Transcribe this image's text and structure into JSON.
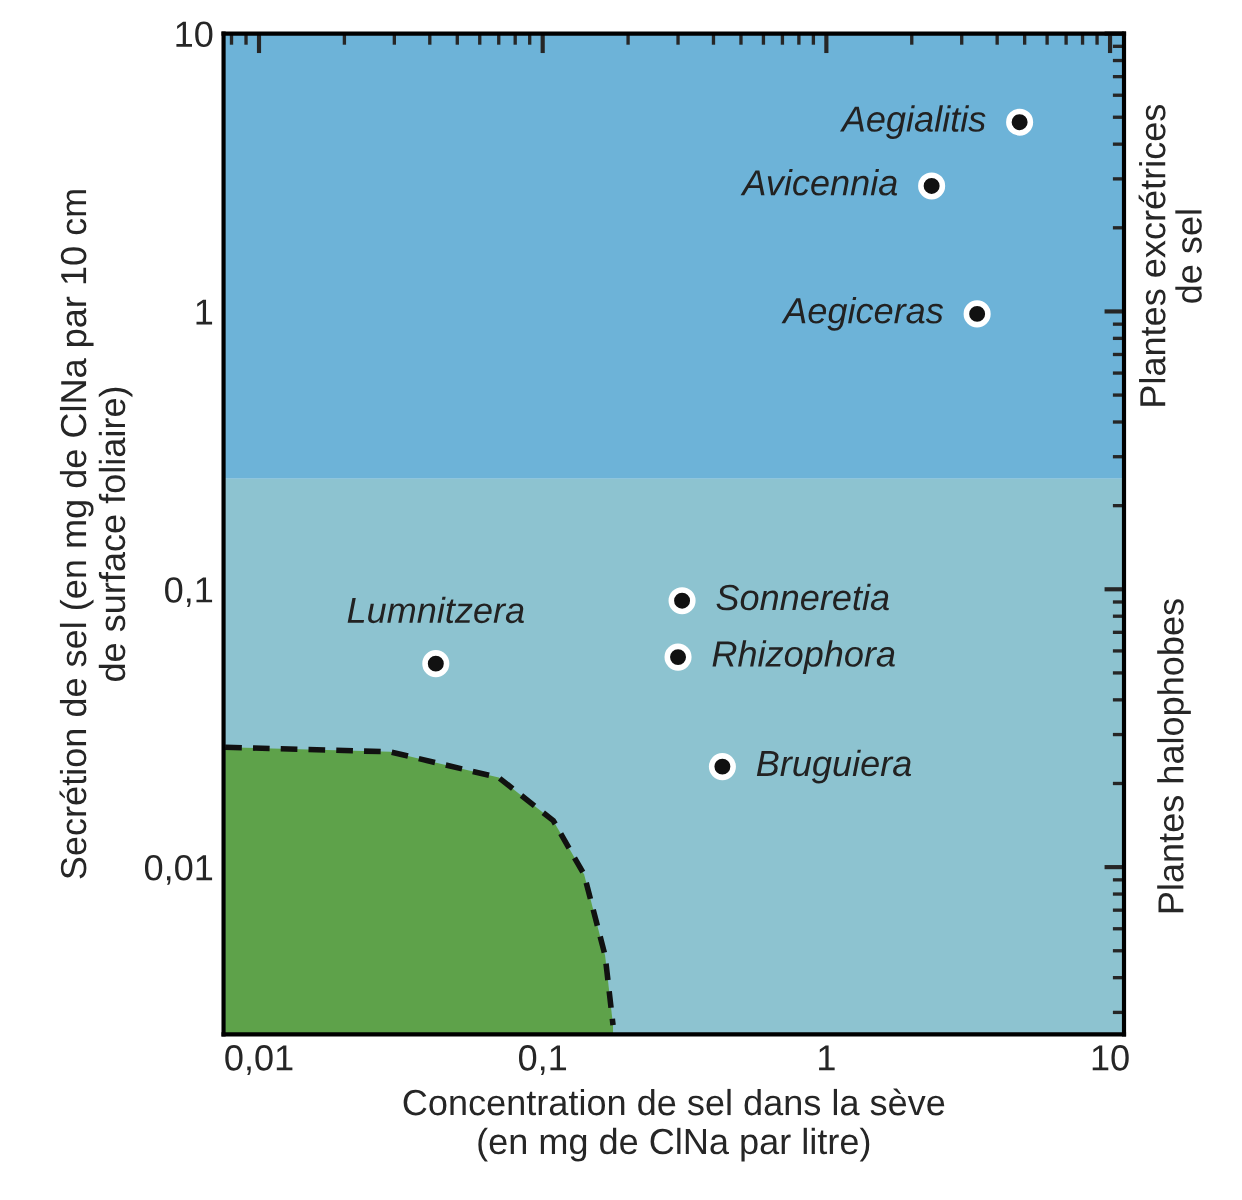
{
  "chart_data": {
    "type": "scatter",
    "xlabel": "Concentration de sel dans la sève\n(en mg de ClNa par litre)",
    "ylabel": "Secrétion de sel (en mg de ClNa par 10 cm\nde surface foliaire)",
    "log": "xy",
    "xlim": [
      0.0075,
      11.2
    ],
    "ylim": [
      0.0025,
      10
    ],
    "xticks": [
      {
        "value": 0.01,
        "label": "0,01"
      },
      {
        "value": 0.1,
        "label": "0,1"
      },
      1,
      10
    ],
    "yticks": [
      {
        "value": 0.01,
        "label": "0,01"
      },
      {
        "value": 0.1,
        "label": "0,1"
      },
      1,
      10
    ],
    "grid": false,
    "legend": false,
    "bands": [
      {
        "axis": "y",
        "from": 0.25,
        "to": 10,
        "label": "Plantes excrétrices\nde sel",
        "color": "#6db3d8"
      },
      {
        "axis": "y",
        "from": 0.0025,
        "to": 0.25,
        "label": "Plantes halophobes",
        "color": "#8dc3d0"
      }
    ],
    "series": [
      {
        "type": "area",
        "color": "#5ea24a",
        "line_style": "dashed",
        "x": [
          0.0076,
          0.029,
          0.07,
          0.109,
          0.14,
          0.166,
          0.177
        ],
        "values": [
          0.027,
          0.026,
          0.021,
          0.0147,
          0.0094,
          0.0048,
          0.0027
        ]
      },
      {
        "marker": "circle",
        "color": "#111111",
        "x": [
          4.8,
          2.35,
          3.4,
          0.042,
          0.31,
          0.3,
          0.43
        ],
        "values": [
          4.8,
          2.83,
          0.98,
          0.054,
          0.091,
          0.057,
          0.023
        ]
      }
    ],
    "annotations": [
      {
        "text": "Aegialitis",
        "x": 4.8,
        "y": 4.8
      },
      {
        "text": "Avicennia",
        "x": 2.35,
        "y": 2.83
      },
      {
        "text": "Aegiceras",
        "x": 3.4,
        "y": 0.98
      },
      {
        "text": "Lumnitzera",
        "x": 0.042,
        "y": 0.054
      },
      {
        "text": "Sonneretia",
        "x": 0.31,
        "y": 0.091
      },
      {
        "text": "Rhizophora",
        "x": 0.3,
        "y": 0.057
      },
      {
        "text": "Bruguiera",
        "x": 0.43,
        "y": 0.023
      }
    ]
  }
}
